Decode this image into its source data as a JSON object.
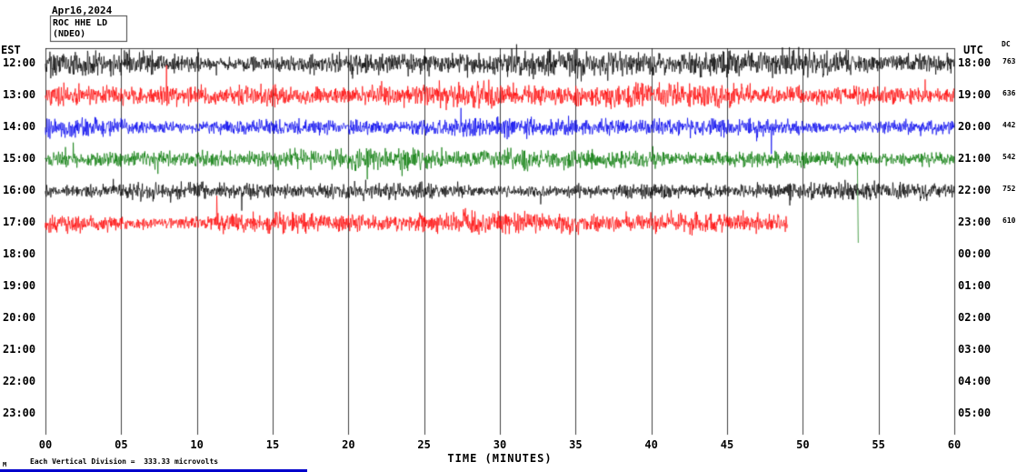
{
  "header": {
    "date": "Apr16,2024",
    "station_line1": "ROC HHE LD",
    "station_line2": "(NDEO)"
  },
  "axes": {
    "left_label": "EST",
    "right_label": "UTC",
    "dc_label": "DC",
    "x_axis_label": "TIME (MINUTES)",
    "x_ticks": [
      "00",
      "05",
      "10",
      "15",
      "20",
      "25",
      "30",
      "35",
      "40",
      "45",
      "50",
      "55",
      "60"
    ]
  },
  "footer": {
    "note": "Each Vertical Division =  333.33 microvolts",
    "logo": "M"
  },
  "colors": {
    "grid": "#000000",
    "bottom_bar": "#0000cc"
  },
  "chart_data": {
    "type": "line",
    "subtype": "helicorder-seismogram",
    "x_range_minutes": [
      0,
      60
    ],
    "minutes_per_row": 60,
    "vertical_division_microvolts": 333.33,
    "grid_interval_minutes": 5,
    "rows": [
      {
        "est": "12:00",
        "utc": "18:00",
        "dc": "763",
        "trace": true,
        "color": "#000000",
        "amplitude": 14,
        "start_min": 0,
        "end_min": 60
      },
      {
        "est": "13:00",
        "utc": "19:00",
        "dc": "636",
        "trace": true,
        "color": "#ff0000",
        "amplitude": 13,
        "start_min": 0,
        "end_min": 60
      },
      {
        "est": "14:00",
        "utc": "20:00",
        "dc": "442",
        "trace": true,
        "color": "#0000ee",
        "amplitude": 10,
        "start_min": 0,
        "end_min": 60
      },
      {
        "est": "15:00",
        "utc": "21:00",
        "dc": "542",
        "trace": true,
        "color": "#007700",
        "amplitude": 10,
        "start_min": 0,
        "end_min": 60,
        "spike_min": 53.6,
        "spike_drop": 92
      },
      {
        "est": "16:00",
        "utc": "22:00",
        "dc": "752",
        "trace": true,
        "color": "#000000",
        "amplitude": 8,
        "start_min": 0,
        "end_min": 60
      },
      {
        "est": "17:00",
        "utc": "23:00",
        "dc": "610",
        "trace": true,
        "color": "#ff0000",
        "amplitude": 12,
        "start_min": 0,
        "end_min": 49
      },
      {
        "est": "18:00",
        "utc": "00:00",
        "trace": false
      },
      {
        "est": "19:00",
        "utc": "01:00",
        "trace": false
      },
      {
        "est": "20:00",
        "utc": "02:00",
        "trace": false
      },
      {
        "est": "21:00",
        "utc": "03:00",
        "trace": false
      },
      {
        "est": "22:00",
        "utc": "04:00",
        "trace": false
      },
      {
        "est": "23:00",
        "utc": "05:00",
        "trace": false
      }
    ]
  }
}
